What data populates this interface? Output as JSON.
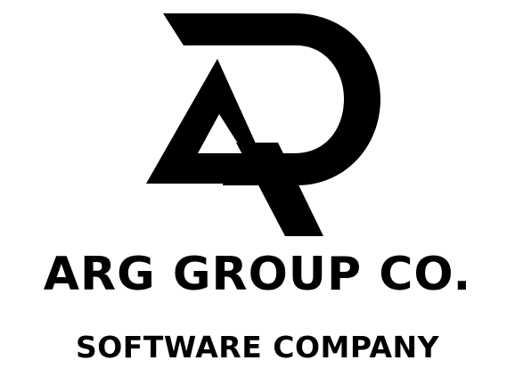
{
  "logo": {
    "icon_name": "arg-monogram-icon",
    "color": "#000000",
    "background": "#ffffff"
  },
  "company_name": "ARG GROUP CO.",
  "tagline": "SOFTWARE COMPANY"
}
